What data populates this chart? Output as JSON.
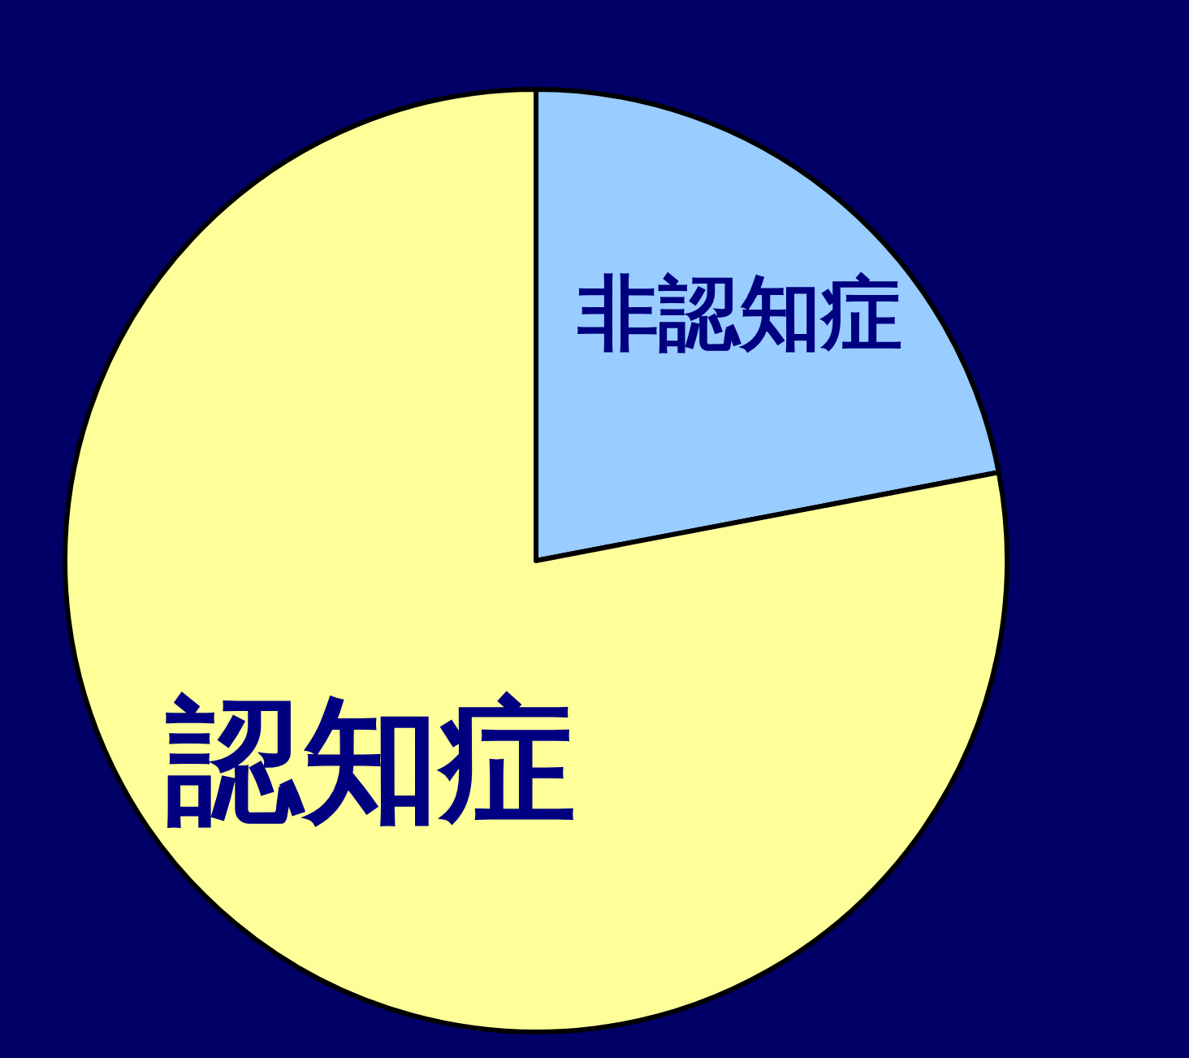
{
  "chart_data": {
    "type": "pie",
    "categories": [
      "非認知症",
      "認知症"
    ],
    "values": [
      22,
      78
    ],
    "colors": [
      "#99ccff",
      "#ffff99"
    ]
  }
}
